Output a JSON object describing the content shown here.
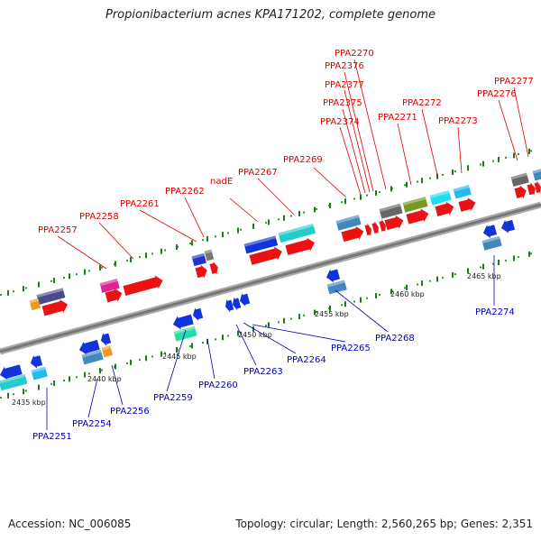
{
  "title": "Propionibacterium acnes KPA171202, complete genome",
  "footer": {
    "accession": "Accession: NC_006085",
    "stats": "Topology: circular; Length: 2,560,265 bp; Genes: 2,351"
  },
  "colors": {
    "forward": "#ee1111",
    "reverse": "#1133dd",
    "backbone": "#888888",
    "label_forward": "#dd0000",
    "label_reverse": "#0000bb"
  },
  "tick_labels": [
    "2435 kbp",
    "2440 kbp",
    "2445 kbp",
    "2450 kbp",
    "2455 kbp",
    "2460 kbp",
    "2465 kbp"
  ],
  "forward_labels": [
    "PPA2257",
    "PPA2258",
    "PPA2261",
    "PPA2262",
    "nadE",
    "PPA2267",
    "PPA2269",
    "PPA2374",
    "PPA2375",
    "PPA2377",
    "PPA2376",
    "PPA2270",
    "PPA2271",
    "PPA2272",
    "PPA2273",
    "PPA2276",
    "PPA2277"
  ],
  "reverse_labels": [
    "PPA2251",
    "PPA2254",
    "PPA2256",
    "PPA2259",
    "PPA2260",
    "PPA2263",
    "PPA2264",
    "PPA2265",
    "PPA2268",
    "PPA2274"
  ]
}
